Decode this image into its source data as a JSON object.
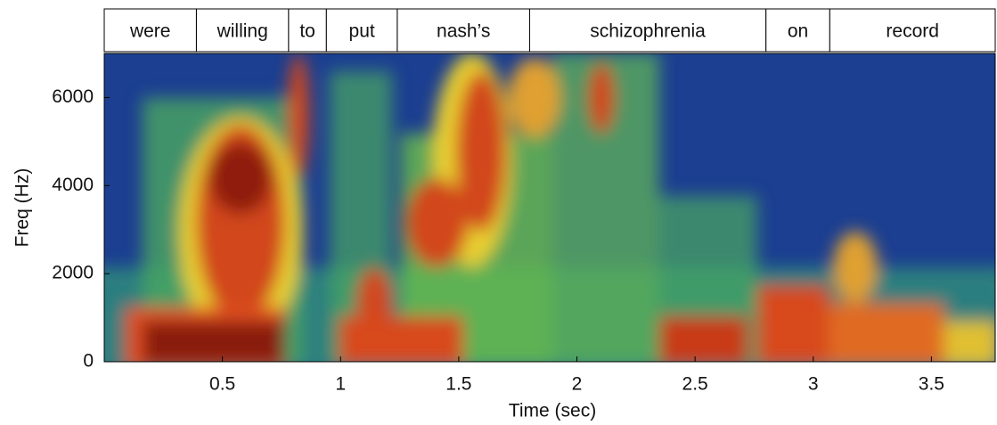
{
  "chart_data": {
    "type": "spectrogram",
    "xlabel": "Time (sec)",
    "ylabel": "Freq (Hz)",
    "xlim": [
      0,
      3.77
    ],
    "ylim": [
      0,
      7000
    ],
    "xticks": [
      0.5,
      1,
      1.5,
      2,
      2.5,
      3,
      3.5
    ],
    "yticks": [
      0,
      2000,
      4000,
      6000
    ],
    "segments": [
      {
        "label": "were",
        "start": 0,
        "end": 0.39
      },
      {
        "label": "willing",
        "start": 0.39,
        "end": 0.78
      },
      {
        "label": "to",
        "start": 0.78,
        "end": 0.94
      },
      {
        "label": "put",
        "start": 0.94,
        "end": 1.24
      },
      {
        "label": "nash’s",
        "start": 1.24,
        "end": 1.8
      },
      {
        "label": "schizophrenia",
        "start": 1.8,
        "end": 2.8
      },
      {
        "label": "on",
        "start": 2.8,
        "end": 3.07
      },
      {
        "label": "record",
        "start": 3.07,
        "end": 3.77
      }
    ]
  }
}
